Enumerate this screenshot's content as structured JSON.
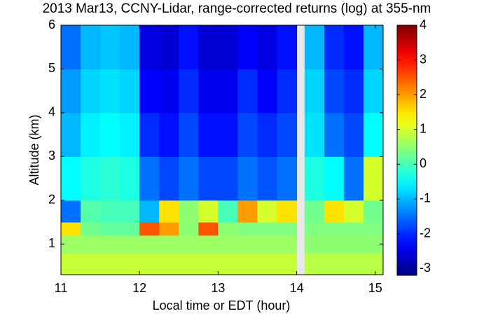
{
  "chart_data": {
    "type": "heatmap",
    "title": "2013 Mar13, CCNY-Lidar, range-corrected returns (log) at 355-nm",
    "xlabel": "Local time or EDT (hour)",
    "ylabel": "Altitude (km)",
    "colormap": "jet",
    "xbins": [
      11,
      11.25,
      11.5,
      11.75,
      12,
      12.25,
      12.5,
      12.75,
      13,
      13.25,
      13.5,
      13.75,
      14,
      14.1,
      14.35,
      14.6,
      14.85,
      15.1
    ],
    "ybins": [
      0.3,
      0.8,
      1.2,
      1.5,
      2,
      3,
      4,
      5,
      6
    ],
    "values": [
      [
        0.9,
        0.9,
        0.9,
        0.9,
        0.9,
        0.9,
        0.9,
        0.9,
        0.9,
        0.9,
        0.9,
        0.9,
        null,
        0.8,
        0.8,
        0.8,
        0.8
      ],
      [
        0.6,
        0.6,
        0.6,
        0.6,
        0.6,
        0.6,
        0.6,
        0.6,
        0.6,
        0.6,
        0.6,
        0.6,
        null,
        0.5,
        0.5,
        0.5,
        0.5
      ],
      [
        1.5,
        0.3,
        0.2,
        0.2,
        2.5,
        2,
        0.5,
        2.5,
        0.5,
        0.4,
        0.4,
        0.4,
        null,
        0.4,
        0.4,
        0.4,
        0.4
      ],
      [
        -1.5,
        0.1,
        0,
        0,
        -1,
        1.5,
        0.5,
        1,
        0,
        2,
        1,
        1.5,
        null,
        0.3,
        1.5,
        1,
        0.3
      ],
      [
        -0.5,
        -0.3,
        -0.2,
        -0.3,
        -1.5,
        -1.8,
        -1.5,
        -1.8,
        -1.8,
        -1.5,
        -1.7,
        -1.5,
        null,
        -0.3,
        -0.5,
        -1.5,
        1
      ],
      [
        -1,
        -0.6,
        -0.5,
        -0.6,
        -2,
        -2.2,
        -1.8,
        -2.2,
        -2.2,
        -1.8,
        -2,
        -1.8,
        null,
        -0.7,
        -1.5,
        -1.8,
        -0.5
      ],
      [
        -1.2,
        -0.8,
        -0.7,
        -0.8,
        -2.3,
        -2.4,
        -2,
        -2.4,
        -2.4,
        -2,
        -2.3,
        -2,
        null,
        -0.8,
        -1.8,
        -2,
        -0.8
      ],
      [
        -1.5,
        -1,
        -0.9,
        -1,
        -2.5,
        -2.6,
        -2.2,
        -2.6,
        -2.6,
        -2.3,
        -2.5,
        -2.2,
        null,
        -1,
        -2,
        -2.2,
        -1
      ]
    ],
    "xlim": [
      11,
      15.1
    ],
    "xticks": [
      11,
      12,
      13,
      14,
      15
    ],
    "ylim": [
      0.3,
      6
    ],
    "yticks": [
      1,
      2,
      3,
      4,
      5,
      6
    ],
    "clim": [
      -3.2,
      4
    ],
    "cticks": [
      -3,
      -2,
      -1,
      0,
      1,
      2,
      3,
      4
    ]
  }
}
